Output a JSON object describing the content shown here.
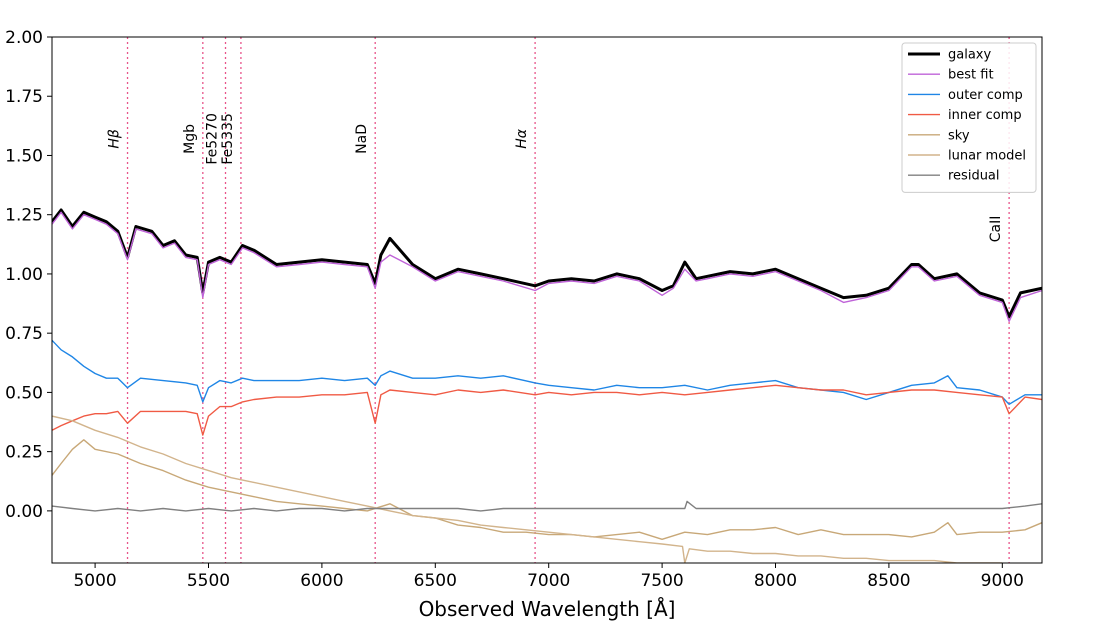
{
  "chart_data": {
    "type": "line",
    "title": "",
    "xlabel": "Observed Wavelength [Å]",
    "ylabel": "",
    "xlim": [
      4810,
      9175
    ],
    "ylim": [
      -0.22,
      2.0
    ],
    "x_ticks": [
      5000,
      5500,
      6000,
      6500,
      7000,
      7500,
      8000,
      8500,
      9000
    ],
    "y_ticks": [
      0.0,
      0.25,
      0.5,
      0.75,
      1.0,
      1.25,
      1.5,
      1.75,
      2.0
    ],
    "x_tick_labels": [
      "5000",
      "5500",
      "6000",
      "6500",
      "7000",
      "7500",
      "8000",
      "8500",
      "9000"
    ],
    "y_tick_labels": [
      "0.00",
      "0.25",
      "0.50",
      "0.75",
      "1.00",
      "1.25",
      "1.50",
      "1.75",
      "2.00"
    ],
    "grid": false,
    "legend_position": "top-right",
    "spectral_lines": [
      {
        "label": "Hβ",
        "x": 5143,
        "label_y": 1.57
      },
      {
        "label": "Mgb",
        "x": 5475,
        "label_y": 1.57
      },
      {
        "label": "Fe5270",
        "x": 5575,
        "label_y": 1.57
      },
      {
        "label": "Fe5335",
        "x": 5643,
        "label_y": 1.57
      },
      {
        "label": "NaD",
        "x": 6235,
        "label_y": 1.57
      },
      {
        "label": "Hα",
        "x": 6940,
        "label_y": 1.57
      },
      {
        "label": "CaII",
        "x": 9030,
        "label_y": 1.19
      }
    ],
    "series": [
      {
        "name": "galaxy",
        "color": "#000000",
        "x": [
          4810,
          4850,
          4900,
          4950,
          5000,
          5050,
          5100,
          5143,
          5180,
          5250,
          5300,
          5350,
          5400,
          5450,
          5475,
          5500,
          5550,
          5600,
          5650,
          5700,
          5800,
          5900,
          6000,
          6100,
          6200,
          6235,
          6260,
          6300,
          6400,
          6500,
          6600,
          6700,
          6800,
          6940,
          7000,
          7100,
          7200,
          7300,
          7400,
          7500,
          7550,
          7600,
          7650,
          7700,
          7800,
          7900,
          8000,
          8100,
          8200,
          8300,
          8400,
          8500,
          8600,
          8630,
          8700,
          8800,
          8900,
          9000,
          9030,
          9080,
          9175
        ],
        "y": [
          1.22,
          1.27,
          1.2,
          1.26,
          1.24,
          1.22,
          1.18,
          1.07,
          1.2,
          1.18,
          1.12,
          1.14,
          1.08,
          1.07,
          0.92,
          1.05,
          1.07,
          1.05,
          1.12,
          1.1,
          1.04,
          1.05,
          1.06,
          1.05,
          1.04,
          0.96,
          1.08,
          1.15,
          1.04,
          0.98,
          1.02,
          1.0,
          0.98,
          0.95,
          0.97,
          0.98,
          0.97,
          1.0,
          0.98,
          0.93,
          0.95,
          1.05,
          0.98,
          0.99,
          1.01,
          1.0,
          1.02,
          0.98,
          0.94,
          0.9,
          0.91,
          0.94,
          1.04,
          1.04,
          0.98,
          1.0,
          0.92,
          0.89,
          0.82,
          0.92,
          0.94
        ]
      },
      {
        "name": "best fit",
        "color": "#bf63d8",
        "x": [
          4810,
          4850,
          4900,
          4950,
          5000,
          5050,
          5100,
          5143,
          5180,
          5250,
          5300,
          5350,
          5400,
          5450,
          5475,
          5500,
          5550,
          5600,
          5650,
          5700,
          5800,
          5900,
          6000,
          6100,
          6200,
          6235,
          6260,
          6300,
          6400,
          6500,
          6600,
          6700,
          6800,
          6940,
          7000,
          7100,
          7200,
          7300,
          7400,
          7500,
          7550,
          7600,
          7650,
          7700,
          7800,
          7900,
          8000,
          8100,
          8200,
          8300,
          8400,
          8500,
          8600,
          8630,
          8700,
          8800,
          8900,
          9000,
          9030,
          9080,
          9175
        ],
        "y": [
          1.21,
          1.26,
          1.19,
          1.25,
          1.23,
          1.21,
          1.17,
          1.06,
          1.19,
          1.17,
          1.11,
          1.13,
          1.07,
          1.06,
          0.9,
          1.04,
          1.06,
          1.04,
          1.11,
          1.09,
          1.03,
          1.04,
          1.05,
          1.04,
          1.03,
          0.94,
          1.05,
          1.08,
          1.03,
          0.97,
          1.01,
          0.99,
          0.97,
          0.93,
          0.96,
          0.97,
          0.96,
          0.99,
          0.97,
          0.91,
          0.94,
          1.02,
          0.97,
          0.98,
          1.0,
          0.99,
          1.01,
          0.97,
          0.93,
          0.88,
          0.9,
          0.93,
          1.03,
          1.03,
          0.97,
          0.99,
          0.91,
          0.88,
          0.8,
          0.9,
          0.93
        ]
      },
      {
        "name": "outer comp",
        "color": "#1f86e6",
        "x": [
          4810,
          4850,
          4900,
          4950,
          5000,
          5050,
          5100,
          5143,
          5200,
          5300,
          5400,
          5450,
          5475,
          5500,
          5550,
          5600,
          5650,
          5700,
          5800,
          5900,
          6000,
          6100,
          6200,
          6235,
          6260,
          6300,
          6400,
          6500,
          6600,
          6700,
          6800,
          6940,
          7000,
          7100,
          7200,
          7300,
          7400,
          7500,
          7600,
          7700,
          7800,
          7900,
          8000,
          8100,
          8200,
          8300,
          8400,
          8500,
          8600,
          8700,
          8760,
          8800,
          8900,
          9000,
          9030,
          9100,
          9175
        ],
        "y": [
          0.72,
          0.68,
          0.65,
          0.61,
          0.58,
          0.56,
          0.56,
          0.52,
          0.56,
          0.55,
          0.54,
          0.53,
          0.46,
          0.52,
          0.55,
          0.54,
          0.56,
          0.55,
          0.55,
          0.55,
          0.56,
          0.55,
          0.56,
          0.53,
          0.57,
          0.59,
          0.56,
          0.56,
          0.57,
          0.56,
          0.57,
          0.54,
          0.53,
          0.52,
          0.51,
          0.53,
          0.52,
          0.52,
          0.53,
          0.51,
          0.53,
          0.54,
          0.55,
          0.52,
          0.51,
          0.5,
          0.47,
          0.5,
          0.53,
          0.54,
          0.57,
          0.52,
          0.51,
          0.48,
          0.45,
          0.49,
          0.49
        ]
      },
      {
        "name": "inner comp",
        "color": "#f05a44",
        "x": [
          4810,
          4850,
          4900,
          4950,
          5000,
          5050,
          5100,
          5143,
          5200,
          5300,
          5400,
          5450,
          5475,
          5500,
          5550,
          5600,
          5650,
          5700,
          5800,
          5900,
          6000,
          6100,
          6200,
          6235,
          6260,
          6300,
          6400,
          6500,
          6600,
          6700,
          6800,
          6940,
          7000,
          7100,
          7200,
          7300,
          7400,
          7500,
          7600,
          7700,
          7800,
          7900,
          8000,
          8100,
          8200,
          8300,
          8400,
          8500,
          8600,
          8700,
          8800,
          8900,
          9000,
          9030,
          9100,
          9175
        ],
        "y": [
          0.34,
          0.36,
          0.38,
          0.4,
          0.41,
          0.41,
          0.42,
          0.37,
          0.42,
          0.42,
          0.42,
          0.41,
          0.32,
          0.4,
          0.44,
          0.44,
          0.46,
          0.47,
          0.48,
          0.48,
          0.49,
          0.49,
          0.5,
          0.37,
          0.49,
          0.51,
          0.5,
          0.49,
          0.51,
          0.5,
          0.51,
          0.49,
          0.5,
          0.49,
          0.5,
          0.5,
          0.49,
          0.5,
          0.49,
          0.5,
          0.51,
          0.52,
          0.53,
          0.52,
          0.51,
          0.51,
          0.49,
          0.5,
          0.51,
          0.51,
          0.5,
          0.49,
          0.48,
          0.41,
          0.48,
          0.47
        ]
      },
      {
        "name": "sky",
        "color": "#c8a878",
        "x": [
          4810,
          4850,
          4900,
          4950,
          5000,
          5100,
          5200,
          5300,
          5400,
          5500,
          5600,
          5700,
          5800,
          5900,
          6000,
          6100,
          6200,
          6300,
          6400,
          6500,
          6600,
          6700,
          6800,
          6900,
          7000,
          7100,
          7200,
          7300,
          7400,
          7500,
          7600,
          7700,
          7800,
          7900,
          8000,
          8100,
          8200,
          8300,
          8400,
          8500,
          8600,
          8700,
          8760,
          8800,
          8900,
          9000,
          9100,
          9175
        ],
        "y": [
          0.15,
          0.2,
          0.26,
          0.3,
          0.26,
          0.24,
          0.2,
          0.17,
          0.13,
          0.1,
          0.08,
          0.06,
          0.04,
          0.03,
          0.02,
          0.01,
          0.0,
          0.03,
          -0.02,
          -0.03,
          -0.06,
          -0.07,
          -0.09,
          -0.09,
          -0.1,
          -0.1,
          -0.11,
          -0.1,
          -0.09,
          -0.12,
          -0.09,
          -0.1,
          -0.08,
          -0.08,
          -0.07,
          -0.1,
          -0.08,
          -0.1,
          -0.1,
          -0.1,
          -0.11,
          -0.09,
          -0.05,
          -0.1,
          -0.09,
          -0.09,
          -0.08,
          -0.05
        ]
      },
      {
        "name": "lunar model",
        "color": "#d2b48c",
        "x": [
          4810,
          4900,
          5000,
          5100,
          5200,
          5300,
          5400,
          5500,
          5600,
          5700,
          5800,
          5900,
          6000,
          6100,
          6200,
          6300,
          6400,
          6500,
          6600,
          6700,
          6800,
          6900,
          7000,
          7100,
          7200,
          7300,
          7400,
          7500,
          7590,
          7600,
          7620,
          7700,
          7800,
          7900,
          8000,
          8100,
          8200,
          8300,
          8400,
          8500,
          8600,
          8700,
          8800,
          8900,
          9000
        ],
        "y": [
          0.4,
          0.38,
          0.34,
          0.31,
          0.27,
          0.24,
          0.2,
          0.17,
          0.14,
          0.12,
          0.1,
          0.08,
          0.06,
          0.04,
          0.02,
          0.0,
          -0.02,
          -0.03,
          -0.04,
          -0.06,
          -0.07,
          -0.08,
          -0.09,
          -0.1,
          -0.11,
          -0.12,
          -0.13,
          -0.14,
          -0.15,
          -0.22,
          -0.16,
          -0.17,
          -0.17,
          -0.18,
          -0.18,
          -0.19,
          -0.19,
          -0.2,
          -0.2,
          -0.21,
          -0.21,
          -0.21,
          -0.22,
          -0.22,
          -0.22
        ]
      },
      {
        "name": "residual",
        "color": "#808080",
        "x": [
          4810,
          4900,
          5000,
          5100,
          5200,
          5300,
          5400,
          5500,
          5600,
          5700,
          5800,
          5900,
          6000,
          6100,
          6200,
          6300,
          6400,
          6500,
          6600,
          6700,
          6800,
          6900,
          7000,
          7100,
          7200,
          7300,
          7400,
          7500,
          7600,
          7610,
          7650,
          7700,
          7800,
          7900,
          8000,
          8100,
          8200,
          8300,
          8400,
          8500,
          8600,
          8700,
          8800,
          8900,
          9000,
          9100,
          9175
        ],
        "y": [
          0.02,
          0.01,
          0.0,
          0.01,
          0.0,
          0.01,
          0.0,
          0.01,
          0.0,
          0.01,
          0.0,
          0.01,
          0.01,
          0.0,
          0.01,
          0.01,
          0.01,
          0.01,
          0.01,
          0.0,
          0.01,
          0.01,
          0.01,
          0.01,
          0.01,
          0.01,
          0.01,
          0.01,
          0.01,
          0.04,
          0.01,
          0.01,
          0.01,
          0.01,
          0.01,
          0.01,
          0.01,
          0.01,
          0.01,
          0.01,
          0.01,
          0.01,
          0.01,
          0.01,
          0.01,
          0.02,
          0.03
        ]
      }
    ]
  }
}
